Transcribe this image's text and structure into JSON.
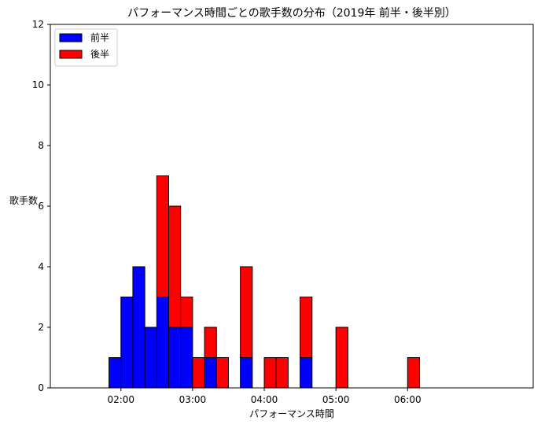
{
  "chart_data": {
    "type": "bar",
    "stacked": true,
    "title": "パフォーマンス時間ごとの歌手数の分布（2019年 前半・後半別）",
    "xlabel": "パフォーマンス時間",
    "ylabel": "歌手数",
    "ylim": [
      0,
      12
    ],
    "yticks": [
      0,
      2,
      4,
      6,
      8,
      10,
      12
    ],
    "x_unit": "seconds",
    "xlim": [
      80,
      450
    ],
    "xticks": [
      {
        "value": 120,
        "label": "02:00"
      },
      {
        "value": 180,
        "label": "03:00"
      },
      {
        "value": 240,
        "label": "04:00"
      },
      {
        "value": 300,
        "label": "05:00"
      },
      {
        "value": 360,
        "label": "06:00"
      }
    ],
    "bin_width": 10,
    "bin_starts": [
      80,
      90,
      100,
      110,
      120,
      130,
      140,
      150,
      160,
      170,
      180,
      190,
      200,
      210,
      220,
      230,
      240,
      250,
      260,
      270,
      280,
      290,
      300,
      310,
      320,
      330,
      340,
      350,
      360,
      370,
      380,
      390,
      400,
      410,
      420,
      430,
      440
    ],
    "series": [
      {
        "name": "前半",
        "color": "#0000ff",
        "values": [
          0,
          0,
          0,
          1,
          3,
          4,
          2,
          3,
          2,
          2,
          0,
          1,
          0,
          0,
          1,
          0,
          0,
          0,
          0,
          1,
          0,
          0,
          0,
          0,
          0,
          0,
          0,
          0,
          0,
          0,
          0,
          0,
          0,
          0,
          0,
          0,
          0
        ]
      },
      {
        "name": "後半",
        "color": "#ff0000",
        "values": [
          0,
          0,
          0,
          0,
          0,
          0,
          0,
          4,
          4,
          1,
          1,
          1,
          1,
          0,
          3,
          0,
          1,
          1,
          0,
          2,
          0,
          0,
          2,
          0,
          0,
          0,
          0,
          0,
          1,
          0,
          0,
          0,
          0,
          0,
          0,
          0,
          0
        ]
      }
    ],
    "legend_position": "top-left",
    "grid": false
  }
}
